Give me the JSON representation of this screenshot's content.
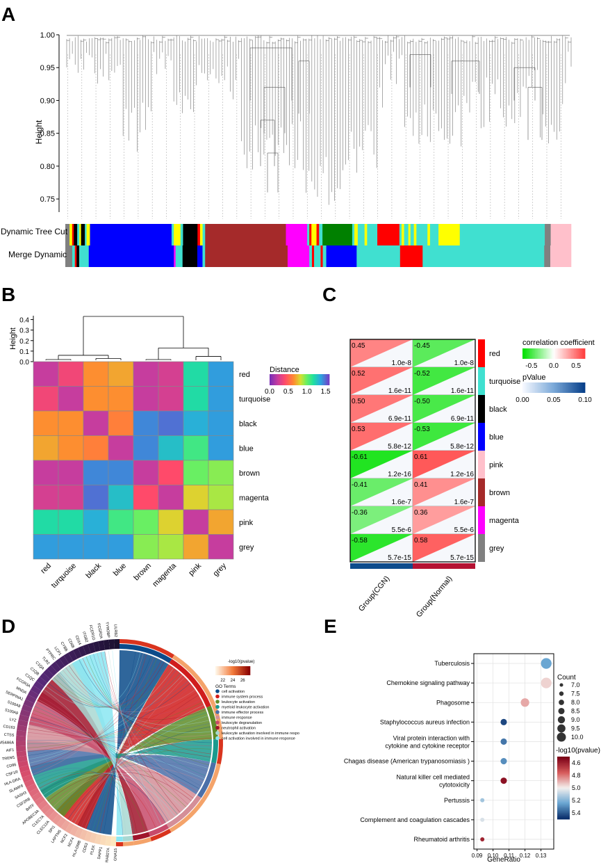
{
  "panels": {
    "A": "A",
    "B": "B",
    "C": "C",
    "D": "D",
    "E": "E"
  },
  "colors": {
    "red": "#ff0000",
    "turquoise": "#40e0d0",
    "black": "#000000",
    "blue": "#0000ff",
    "brown": "#a52a2a",
    "magenta": "#ff00ff",
    "pink": "#ffc0cb",
    "grey": "#808080",
    "yellow": "#ffff00",
    "green": "#008000"
  },
  "chart_data": [
    {
      "id": "A",
      "type": "dendrogram",
      "ylabel": "Height",
      "yticks": [
        0.75,
        0.8,
        0.85,
        0.9,
        0.95,
        1.0
      ],
      "ytick_labels": [
        "0.75",
        "0.80",
        "0.85",
        "0.90",
        "0.95",
        "1.00"
      ],
      "ylim": [
        0.73,
        1.0
      ],
      "tracks": [
        {
          "label": "Dynamic Tree Cut",
          "segments": [
            [
              "grey",
              1
            ],
            [
              "yellow",
              0.6
            ],
            [
              "red",
              0.4
            ],
            [
              "black",
              0.8
            ],
            [
              "turquoise",
              0.5
            ],
            [
              "yellow",
              0.4
            ],
            [
              "black",
              0.9
            ],
            [
              "turquoise",
              0.4
            ],
            [
              "yellow",
              0.8
            ],
            [
              "blue",
              1.2
            ],
            [
              "blue",
              18
            ],
            [
              "turquoise",
              0.5
            ],
            [
              "yellow",
              1.6
            ],
            [
              "turquoise",
              0.6
            ],
            [
              "black",
              3.4
            ],
            [
              "red",
              0.6
            ],
            [
              "yellow",
              0.6
            ],
            [
              "turquoise",
              0.6
            ],
            [
              "brown",
              19
            ],
            [
              "magenta",
              5
            ],
            [
              "turquoise",
              0.5
            ],
            [
              "red",
              0.5
            ],
            [
              "yellow",
              1.2
            ],
            [
              "red",
              0.6
            ],
            [
              "turquoise",
              0.8
            ],
            [
              "green",
              7
            ],
            [
              "turquoise",
              0.5
            ],
            [
              "yellow",
              0.8
            ],
            [
              "turquoise",
              1.6
            ],
            [
              "yellow",
              0.6
            ],
            [
              "turquoise",
              2.4
            ],
            [
              "red",
              5.2
            ],
            [
              "turquoise",
              0.5
            ],
            [
              "yellow",
              0.6
            ],
            [
              "turquoise",
              1.0
            ],
            [
              "yellow",
              0.5
            ],
            [
              "turquoise",
              0.8
            ],
            [
              "yellow",
              0.6
            ],
            [
              "turquoise",
              2.6
            ],
            [
              "yellow",
              0.6
            ],
            [
              "turquoise",
              2.0
            ],
            [
              "yellow",
              5
            ],
            [
              "turquoise",
              20
            ],
            [
              "grey",
              1.4
            ],
            [
              "pink",
              4.8
            ]
          ]
        },
        {
          "label": "Merge Dynamic",
          "segments": [
            [
              "grey",
              1.6
            ],
            [
              "turquoise",
              0.6
            ],
            [
              "red",
              0.4
            ],
            [
              "black",
              0.6
            ],
            [
              "turquoise",
              2.2
            ],
            [
              "blue",
              1.0
            ],
            [
              "blue",
              18.6
            ],
            [
              "magenta",
              0.4
            ],
            [
              "turquoise",
              1.6
            ],
            [
              "black",
              3.4
            ],
            [
              "blue",
              1.2
            ],
            [
              "turquoise",
              0.6
            ],
            [
              "brown",
              19
            ],
            [
              "magenta",
              5
            ],
            [
              "turquoise",
              0.6
            ],
            [
              "red",
              0.5
            ],
            [
              "turquoise",
              1.5
            ],
            [
              "red",
              0.5
            ],
            [
              "turquoise",
              0.8
            ],
            [
              "blue",
              7
            ],
            [
              "turquoise",
              10
            ],
            [
              "red",
              5.2
            ],
            [
              "turquoise",
              28
            ],
            [
              "grey",
              1.4
            ],
            [
              "pink",
              4.8
            ]
          ]
        }
      ]
    },
    {
      "id": "B",
      "type": "heatmap",
      "ylabel": "Height",
      "yticks": [
        0.0,
        0.1,
        0.2,
        0.3,
        0.4
      ],
      "ytick_labels": [
        "0.0",
        "0.1",
        "0.2",
        "0.3",
        "0.4"
      ],
      "ylim": [
        0,
        0.45
      ],
      "legend_title": "Distance",
      "legend_ticks": [
        "0.0",
        "0.5",
        "1.0",
        "1.5"
      ],
      "legend_range": [
        0,
        1.6
      ],
      "labels": [
        "red",
        "turquoise",
        "black",
        "blue",
        "brown",
        "magenta",
        "pink",
        "grey"
      ],
      "matrix": [
        [
          0.2,
          0.35,
          0.65,
          0.7,
          0.2,
          0.25,
          1.2,
          1.4
        ],
        [
          0.35,
          0.2,
          0.65,
          0.65,
          0.2,
          0.25,
          1.2,
          1.4
        ],
        [
          0.65,
          0.65,
          0.2,
          0.6,
          1.45,
          1.5,
          1.35,
          1.4
        ],
        [
          0.7,
          0.65,
          0.6,
          0.2,
          1.45,
          1.3,
          1.1,
          1.4
        ],
        [
          0.2,
          0.2,
          1.45,
          1.45,
          0.2,
          0.4,
          1.0,
          0.95
        ],
        [
          0.25,
          0.25,
          1.5,
          1.3,
          0.4,
          0.2,
          0.8,
          0.9
        ],
        [
          1.2,
          1.2,
          1.35,
          1.1,
          1.0,
          0.8,
          0.2,
          0.7
        ],
        [
          1.4,
          1.4,
          1.4,
          1.4,
          0.95,
          0.9,
          0.7,
          0.2
        ]
      ],
      "tree": [
        {
          "pair": [
            "red",
            "turquoise"
          ],
          "height": 0.02
        },
        {
          "pair": [
            "brown",
            "magenta"
          ],
          "height": 0.02
        },
        {
          "pair": [
            "black",
            "blue"
          ],
          "height": 0.03
        },
        {
          "pair": [
            "pink",
            "grey"
          ],
          "height": 0.05
        }
      ]
    },
    {
      "id": "C",
      "type": "heatmap",
      "modules": [
        "red",
        "turquoise",
        "black",
        "blue",
        "pink",
        "brown",
        "magenta",
        "grey"
      ],
      "groups": [
        "Group(CGN)",
        "Group(Normal)"
      ],
      "correlations": [
        [
          0.45,
          -0.45
        ],
        [
          0.52,
          -0.52
        ],
        [
          0.5,
          -0.5
        ],
        [
          0.53,
          -0.53
        ],
        [
          -0.61,
          0.61
        ],
        [
          -0.41,
          0.41
        ],
        [
          -0.36,
          0.36
        ],
        [
          -0.58,
          0.58
        ]
      ],
      "labels": [
        [
          "0.45",
          "-0.45"
        ],
        [
          "0.52",
          "-0.52"
        ],
        [
          "0.50",
          "-0.50"
        ],
        [
          "0.53",
          "-0.53"
        ],
        [
          "-0.61",
          "0.61"
        ],
        [
          "-0.41",
          "0.41"
        ],
        [
          "-0.36",
          "0.36"
        ],
        [
          "-0.58",
          "0.58"
        ]
      ],
      "pvalues": [
        "1.0e-8",
        "1.6e-11",
        "6.9e-11",
        "5.8e-12",
        "1.2e-16",
        "1.6e-7",
        "5.5e-6",
        "5.7e-15"
      ],
      "legend_cc_title": "correlation coefficient",
      "legend_cc_ticks": [
        "-0.5",
        "0.0",
        "0.5"
      ],
      "legend_cc_range": [
        -0.7,
        0.7
      ],
      "legend_p_title": "pValue",
      "legend_p_ticks": [
        "0.00",
        "0.05",
        "0.10"
      ],
      "legend_p_range": [
        0,
        0.1
      ],
      "group_colors": [
        "#0e4c8c",
        "#b51233"
      ]
    },
    {
      "id": "D",
      "type": "chord",
      "legend_title": "-log10(pvalue)",
      "legend_ticks": [
        "22",
        "24",
        "26"
      ],
      "legend_range": [
        20.5,
        27.5
      ],
      "go_title": "GO Terms",
      "terms": [
        {
          "name": "cell activation",
          "color": "#0b4b8a"
        },
        {
          "name": "immune system process",
          "color": "#d01d1d"
        },
        {
          "name": "leukocyte activation",
          "color": "#5f8c28"
        },
        {
          "name": "myeloid leukocyte activation",
          "color": "#1a9a8e"
        },
        {
          "name": "immune effector process",
          "color": "#4b6fa8"
        },
        {
          "name": "immune response",
          "color": "#d48e98"
        },
        {
          "name": "leukocyte degranulation",
          "color": "#c74a6a"
        },
        {
          "name": "neutrophil activation",
          "color": "#a0152c"
        },
        {
          "name": "leukocyte activation involved in immune respo",
          "color": "#a8d8d2"
        },
        {
          "name": "cell activation involved in immune response",
          "color": "#8ae6f2"
        }
      ],
      "genes": [
        "LILRB2",
        "TYROBP",
        "FCGR2A",
        "FCER1G",
        "ITGB2",
        "CD14",
        "CD68",
        "CYBB",
        "LCP1",
        "PTPRC",
        "TLR2",
        "C1QA",
        "C1QB",
        "C1QC",
        "FCGR3A",
        "MNDA",
        "SERPINA1",
        "S100A8",
        "S100A9",
        "LYZ",
        "CD163",
        "CTSS",
        "MS4A6A",
        "AIF1",
        "TREM1",
        "CD86",
        "CSF1R",
        "HLA-DRA",
        "SLAMF8",
        "SASH3",
        "CSF2RB",
        "BATF",
        "APOBEC3A",
        "CLEC7A",
        "CLEC12A",
        "SPI1",
        "LAPTM5",
        "NCF2",
        "NCF4",
        "HLA-DMB",
        "CD53",
        "PLEK",
        "DAPP1",
        "RAB27A",
        "GNA15"
      ]
    },
    {
      "id": "E",
      "type": "scatter",
      "categories": [
        "Tuberculosis",
        "Chemokine signaling pathway",
        "Phagosome",
        "Staphylococcus aureus infection",
        "Viral protein interaction with\ncytokine and cytokine receptor",
        "Chagas disease  (American trypanosomiasis  )",
        "Natural killer cell mediated\ncytotoxicity",
        "Pertussis",
        "Complement and coagulation cascades",
        "Rheumatoid arthritis"
      ],
      "gene_ratio": [
        0.1333,
        0.1333,
        0.12,
        0.1067,
        0.1067,
        0.1067,
        0.1067,
        0.0933,
        0.0933,
        0.0933
      ],
      "count": [
        10,
        10,
        9,
        8,
        8,
        8,
        8,
        7,
        7,
        7
      ],
      "neglog10p": [
        5.25,
        4.95,
        4.88,
        5.45,
        5.35,
        5.3,
        4.55,
        5.15,
        5.05,
        4.6
      ],
      "xlabel": "GeneRatio",
      "xticks": [
        0.09,
        0.1,
        0.11,
        0.12,
        0.13
      ],
      "xtick_labels": [
        "0.09",
        "0.10",
        "0.11",
        "0.12",
        "0.13"
      ],
      "xlim": [
        0.088,
        0.138
      ],
      "count_title": "Count",
      "count_ticks": [
        "7.0",
        "7.5",
        "8.0",
        "8.5",
        "9.0",
        "9.5",
        "10.0"
      ],
      "p_title": "-log10(pvalue)",
      "p_ticks": [
        "4.6",
        "4.8",
        "5.0",
        "5.2",
        "5.4"
      ],
      "p_range": [
        4.5,
        5.5
      ]
    }
  ]
}
